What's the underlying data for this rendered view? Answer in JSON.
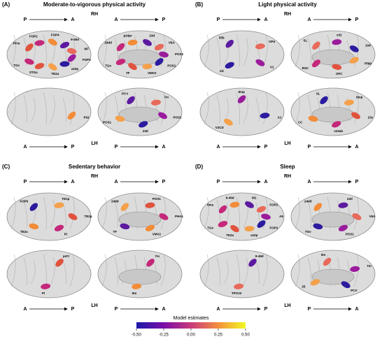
{
  "panels": [
    {
      "label": "(A)",
      "title": "Moderate-to-vigorous physical activity",
      "top_hemisphere": "RH",
      "bottom_hemisphere": "LH",
      "views": [
        {
          "arrow": [
            "P",
            "A"
          ],
          "regions": [
            "PFm",
            "FOP2",
            "FOP4",
            "9-46d",
            "MT",
            "FOP3",
            "a10p",
            "TE2a",
            "STGa",
            "TGv"
          ]
        },
        {
          "arrow": [
            "A",
            "P"
          ],
          "regions": [
            "24dd",
            "p24pr",
            "23d",
            "V6A",
            "POS2",
            "POS1",
            "VMV2",
            "TF",
            "TGv"
          ]
        },
        {
          "arrow": [
            "A",
            "P"
          ],
          "regions": [
            "PGi"
          ]
        },
        {
          "arrow": [
            "P",
            "A"
          ],
          "regions": [
            "PCV",
            "7m",
            "POS2",
            "23d",
            "POS1"
          ]
        }
      ]
    },
    {
      "label": "(B)",
      "title": "Light physical activity",
      "top_hemisphere": "RH",
      "bottom_hemisphere": "LH",
      "views": [
        {
          "arrow": [
            "P",
            "A"
          ],
          "regions": [
            "55b",
            "OP4",
            "V1",
            "11l"
          ]
        },
        {
          "arrow": [
            "A",
            "P"
          ],
          "regions": [
            "SL",
            "s32",
            "10d",
            "10pp",
            "OFC",
            "RSC"
          ]
        },
        {
          "arrow": [
            "A",
            "P"
          ],
          "regions": [
            "6mp",
            "A1",
            "V3CD"
          ]
        },
        {
          "arrow": [
            "P",
            "A"
          ],
          "regions": [
            "SL",
            "6mp",
            "23c",
            "v23ab",
            "CC"
          ]
        }
      ]
    },
    {
      "label": "(C)",
      "title": "Sedentary behavior",
      "top_hemisphere": "RH",
      "bottom_hemisphere": "LH",
      "views": [
        {
          "arrow": [
            "P",
            "A"
          ],
          "regions": [
            "FOP5",
            "TE1p",
            "TE2p",
            "PI",
            "TE2a"
          ]
        },
        {
          "arrow": [
            "A",
            "P"
          ],
          "regions": [
            "24dd",
            "POS1",
            "PHA1",
            "VMV2",
            "TF"
          ]
        },
        {
          "arrow": [
            "A",
            "P"
          ],
          "regions": [
            "p47r",
            "PI"
          ]
        },
        {
          "arrow": [
            "P",
            "A"
          ],
          "regions": [
            "7m",
            "9m"
          ]
        }
      ]
    },
    {
      "label": "(D)",
      "title": "Sleep",
      "top_hemisphere": "RH",
      "bottom_hemisphere": "LH",
      "views": [
        {
          "arrow": [
            "P",
            "A"
          ],
          "regions": [
            "6ma",
            "9-46d",
            "M1",
            "FOP2",
            "A5",
            "FOP3",
            "a10p",
            "TE2a",
            "TGv"
          ]
        },
        {
          "arrow": [
            "A",
            "P"
          ],
          "regions": [
            "24dd",
            "23d",
            "V6A",
            "POS1",
            "TGv"
          ]
        },
        {
          "arrow": [
            "A",
            "P"
          ],
          "regions": [
            "9-46d",
            "TPOJ3"
          ]
        },
        {
          "arrow": [
            "P",
            "A"
          ],
          "regions": [
            "9m",
            "7m",
            "PCV",
            "25"
          ]
        }
      ]
    }
  ],
  "colorbar": {
    "title": "Model estimates",
    "range": [
      -0.5,
      0.5
    ],
    "ticks": [
      {
        "value": -0.5,
        "label": "-0.50"
      },
      {
        "value": -0.25,
        "label": "-0.25"
      },
      {
        "value": 0,
        "label": "0.00"
      },
      {
        "value": 0.25,
        "label": "0.25"
      },
      {
        "value": 0.5,
        "label": "0.50"
      }
    ]
  }
}
